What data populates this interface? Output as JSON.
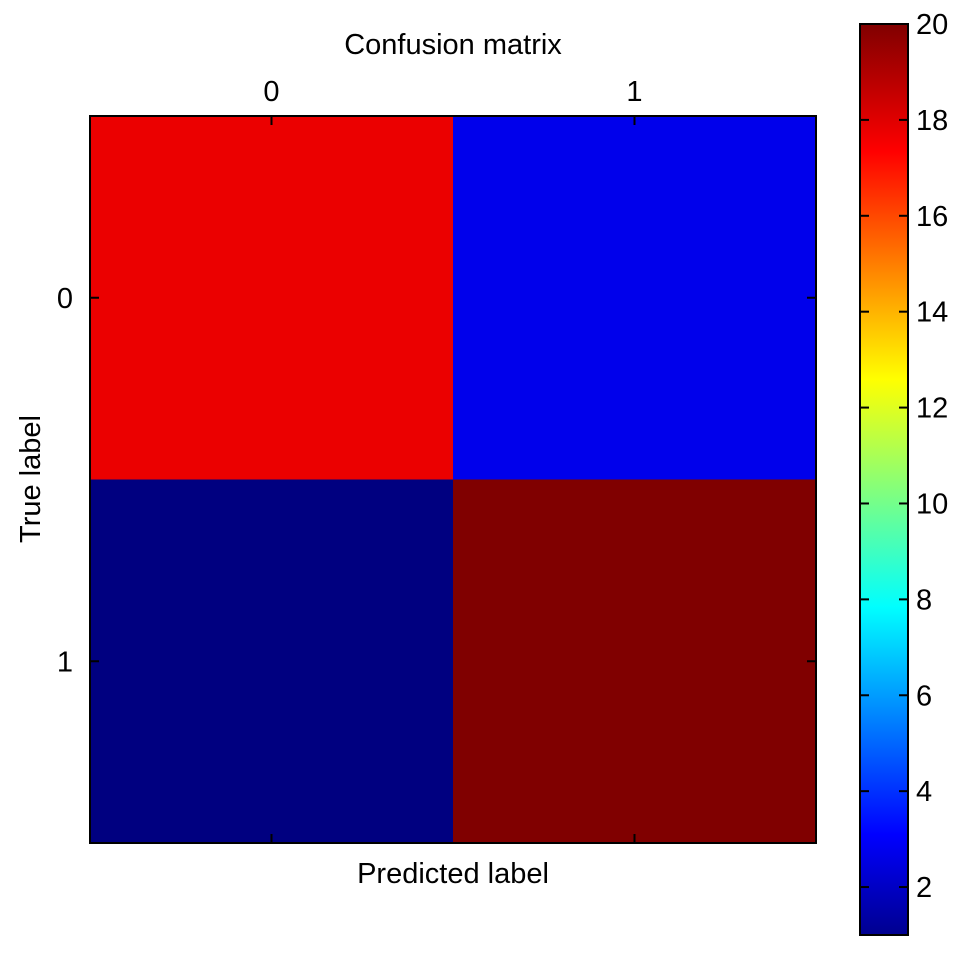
{
  "chart_data": {
    "type": "heatmap",
    "title": "Confusion matrix",
    "xlabel": "Predicted label",
    "ylabel": "True label",
    "x_categories": [
      "0",
      "1"
    ],
    "y_categories": [
      "0",
      "1"
    ],
    "values": [
      [
        18,
        3
      ],
      [
        1,
        20
      ]
    ],
    "colormap": "jet",
    "colorbar": {
      "range": [
        1,
        20
      ],
      "ticks": [
        2,
        4,
        6,
        8,
        10,
        12,
        14,
        16,
        18,
        20
      ],
      "tick_labels": [
        "2",
        "4",
        "6",
        "8",
        "10",
        "12",
        "14",
        "16",
        "18",
        "20"
      ]
    }
  }
}
